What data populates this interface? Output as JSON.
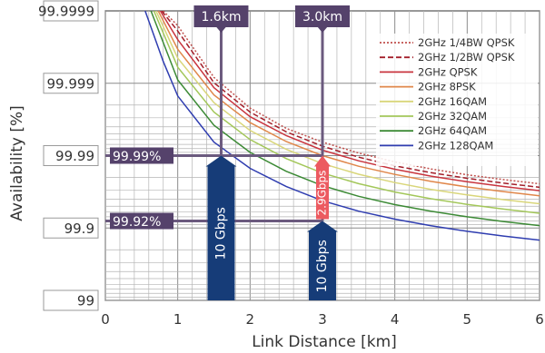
{
  "chart_data": {
    "type": "line",
    "title": "",
    "xlabel": "Link Distance [km]",
    "ylabel": "Availability [%]",
    "xlim": [
      0,
      6
    ],
    "x_ticks": [
      "0",
      "1",
      "2",
      "3",
      "4",
      "5",
      "6"
    ],
    "y_scale": "log-unavailability",
    "y_ticks": [
      "99",
      "99.9",
      "99.99",
      "99.999",
      "99.9999"
    ],
    "grid": true,
    "legend_position": "top-right",
    "series": [
      {
        "name": "2GHz 1/4BW QPSK",
        "color": "#c0504d",
        "dash": "dotted",
        "x": [
          0.8,
          1.0,
          1.5,
          2.0,
          2.5,
          3.0,
          3.5,
          4.0,
          4.5,
          5.0,
          5.5,
          6.0
        ],
        "y": [
          99.9999,
          99.99984,
          99.99917,
          99.9978,
          99.9958,
          99.9935,
          99.9908,
          99.9878,
          99.9847,
          99.9816,
          99.9786,
          99.9755
        ]
      },
      {
        "name": "2GHz 1/2BW QPSK",
        "color": "#a31f2a",
        "dash": "dashed",
        "x": [
          0.78,
          1.0,
          1.5,
          2.0,
          2.5,
          3.0,
          3.5,
          4.0,
          4.5,
          5.0,
          5.5,
          6.0
        ],
        "y": [
          99.9999,
          99.99981,
          99.99902,
          99.9975,
          99.9953,
          99.9926,
          99.9895,
          99.9862,
          99.9828,
          99.9794,
          99.976,
          99.9726
        ]
      },
      {
        "name": "2GHz QPSK",
        "color": "#c9353f",
        "dash": "solid",
        "x": [
          0.76,
          1.0,
          1.5,
          2.0,
          2.5,
          3.0,
          3.5,
          4.0,
          4.5,
          5.0,
          5.5,
          6.0
        ],
        "y": [
          99.9999,
          99.99975,
          99.99885,
          99.9971,
          99.9947,
          99.9916,
          99.9882,
          99.9846,
          99.9808,
          99.977,
          99.9733,
          99.9695
        ]
      },
      {
        "name": "2GHz 8PSK",
        "color": "#e0874a",
        "dash": "solid",
        "x": [
          0.73,
          1.0,
          1.5,
          2.0,
          2.5,
          3.0,
          3.5,
          4.0,
          4.5,
          5.0,
          5.5,
          6.0
        ],
        "y": [
          99.9999,
          99.99966,
          99.99855,
          99.9965,
          99.9936,
          99.99,
          99.986,
          99.9818,
          99.9773,
          99.9729,
          99.9686,
          99.9641
        ]
      },
      {
        "name": "2GHz 16QAM",
        "color": "#d9d67a",
        "dash": "solid",
        "x": [
          0.7,
          1.0,
          1.5,
          2.0,
          2.5,
          3.0,
          3.5,
          4.0,
          4.5,
          5.0,
          5.5,
          6.0
        ],
        "y": [
          99.9999,
          99.99955,
          99.99815,
          99.9955,
          99.9918,
          99.9871,
          99.9819,
          99.9764,
          99.9707,
          99.9651,
          99.9594,
          99.9538
        ]
      },
      {
        "name": "2GHz 32QAM",
        "color": "#a3c75a",
        "dash": "solid",
        "x": [
          0.67,
          1.0,
          1.5,
          2.0,
          2.5,
          3.0,
          3.5,
          4.0,
          4.5,
          5.0,
          5.5,
          6.0
        ],
        "y": [
          99.9999,
          99.9994,
          99.9975,
          99.994,
          99.989,
          99.9826,
          99.9756,
          99.9682,
          99.9606,
          99.9529,
          99.9452,
          99.9375
        ]
      },
      {
        "name": "2GHz 64QAM",
        "color": "#3c8a35",
        "dash": "solid",
        "x": [
          0.63,
          1.0,
          1.5,
          2.0,
          2.5,
          3.0,
          3.5,
          4.0,
          4.5,
          5.0,
          5.5,
          6.0
        ],
        "y": [
          99.9999,
          99.9991,
          99.9962,
          99.991,
          99.9835,
          99.974,
          99.9635,
          99.9525,
          99.9413,
          99.93,
          99.9187,
          99.9074
        ]
      },
      {
        "name": "2GHz 128QAM",
        "color": "#2f3db0",
        "dash": "solid",
        "x": [
          0.55,
          0.8,
          1.0,
          1.5,
          2.0,
          2.5,
          3.0,
          3.5,
          4.0,
          4.5,
          5.0,
          5.5,
          6.0
        ],
        "y": [
          99.9999,
          99.9995,
          99.9985,
          99.9935,
          99.985,
          99.9732,
          99.958,
          99.9415,
          99.9245,
          99.907,
          99.889,
          99.871,
          99.853
        ]
      }
    ],
    "annotations": {
      "markers": [
        {
          "label": "1.6km",
          "x": 1.6
        },
        {
          "label": "3.0km",
          "x": 3.0
        }
      ],
      "levels": [
        {
          "label": "99.99%",
          "y": 99.99
        },
        {
          "label": "99.92%",
          "y": 99.92
        }
      ],
      "arrows": [
        {
          "label": "10 Gbps",
          "x": 1.6,
          "y": 99.99,
          "color": "#163c78"
        },
        {
          "label": "2.9Gbps",
          "x": 3.0,
          "y": 99.99,
          "color": "#ec5a60"
        },
        {
          "label": "10 Gbps",
          "x": 3.0,
          "y": 99.92,
          "color": "#163c78"
        }
      ]
    }
  }
}
